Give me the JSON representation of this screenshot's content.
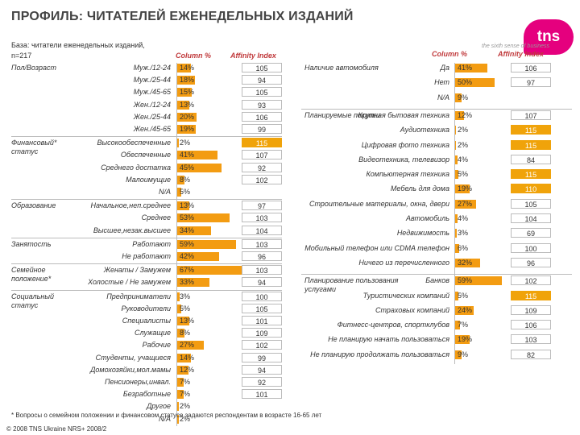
{
  "title": "ПРОФИЛЬ: ЧИТАТЕЛЕЙ ЕЖЕНЕДЕЛЬНЫХ ИЗДАНИЙ",
  "base_line1": "База: читатели еженедельных изданий,",
  "base_line2": "n=217",
  "logo_text": "tns",
  "logo_tagline": "the sixth sense of business",
  "column_label": "Column %",
  "affinity_label": "Affinity Index",
  "footnote": "* Вопросы о семейном положении и финансовом статусе задаются респондентам в возрасте 16-65 лет",
  "copyright": "© 2008 TNS Ukraine NRS+ 2008/2",
  "chart_data": {
    "type": "bar",
    "value_unit": "Column %",
    "index_label": "Affinity Index",
    "left_groups": [
      {
        "group": "Пол/Возраст",
        "rows": [
          {
            "label": "Муж./12-24",
            "value": 14,
            "index": 105
          },
          {
            "label": "Муж./25-44",
            "value": 18,
            "index": 94
          },
          {
            "label": "Муж./45-65",
            "value": 15,
            "index": 105
          },
          {
            "label": "Жен./12-24",
            "value": 13,
            "index": 93
          },
          {
            "label": "Жен./25-44",
            "value": 20,
            "index": 106
          },
          {
            "label": "Жен./45-65",
            "value": 19,
            "index": 99
          }
        ]
      },
      {
        "group": "Финансовый* статус",
        "rows": [
          {
            "label": "Высокообеспеченные",
            "value": 2,
            "index": 115,
            "hi": true
          },
          {
            "label": "Обеспеченные",
            "value": 41,
            "index": 107
          },
          {
            "label": "Среднего достатка",
            "value": 45,
            "index": 92
          },
          {
            "label": "Малоимущие",
            "value": 8,
            "index": 102
          },
          {
            "label": "N/A",
            "value": 5,
            "index": null
          }
        ]
      },
      {
        "group": "Образование",
        "rows": [
          {
            "label": "Начальное,неп.среднее",
            "value": 13,
            "index": 97
          },
          {
            "label": "Среднее",
            "value": 53,
            "index": 103
          },
          {
            "label": "Высшее,незак.высшее",
            "value": 34,
            "index": 104
          }
        ]
      },
      {
        "group": "Занятость",
        "rows": [
          {
            "label": "Работают",
            "value": 59,
            "index": 103
          },
          {
            "label": "Не работают",
            "value": 42,
            "index": 96
          }
        ]
      },
      {
        "group": "Семейное положение*",
        "rows": [
          {
            "label": "Женаты / Замужем",
            "value": 67,
            "index": 103
          },
          {
            "label": "Холостые / Не замужем",
            "value": 33,
            "index": 94
          }
        ]
      },
      {
        "group": "Социальный статус",
        "rows": [
          {
            "label": "Предприниматели",
            "value": 3,
            "index": 100
          },
          {
            "label": "Руководители",
            "value": 5,
            "index": 105
          },
          {
            "label": "Специалисты",
            "value": 13,
            "index": 101
          },
          {
            "label": "Служащие",
            "value": 8,
            "index": 109
          },
          {
            "label": "Рабочие",
            "value": 27,
            "index": 102
          },
          {
            "label": "Студенты, учащиеся",
            "value": 14,
            "index": 99
          },
          {
            "label": "Домохозяйки,мол.мамы",
            "value": 12,
            "index": 94
          },
          {
            "label": "Пенсионеры,инвал.",
            "value": 7,
            "index": 92
          },
          {
            "label": "Безработные",
            "value": 7,
            "index": 101
          },
          {
            "label": "Другое",
            "value": 2,
            "index": null
          },
          {
            "label": "N/A",
            "value": 2,
            "index": null
          }
        ]
      }
    ],
    "right_groups": [
      {
        "group": "Наличие автомобиля",
        "rows": [
          {
            "label": "Да",
            "value": 41,
            "index": 106
          },
          {
            "label": "Нет",
            "value": 50,
            "index": 97
          },
          {
            "label": "N/A",
            "value": 9,
            "index": null
          }
        ]
      },
      {
        "group": "Планируемые покупки",
        "rows": [
          {
            "label": "Крупная бытовая техника",
            "value": 12,
            "index": 107
          },
          {
            "label": "Аудиотехника",
            "value": 2,
            "index": 115,
            "hi": true
          },
          {
            "label": "Цифровая фото техника",
            "value": 2,
            "index": 115,
            "hi": true
          },
          {
            "label": "Видеотехника, телевизор",
            "value": 4,
            "index": 84
          },
          {
            "label": "Компьютерная техника",
            "value": 5,
            "index": 115,
            "hi": true
          },
          {
            "label": "Мебель для дома",
            "value": 19,
            "index": 110,
            "hi": true
          },
          {
            "label": "Строительные материалы, окна, двери",
            "value": 27,
            "index": 105
          },
          {
            "label": "Автомобиль",
            "value": 4,
            "index": 104
          },
          {
            "label": "Недвижимость",
            "value": 3,
            "index": 69
          },
          {
            "label": "Мобильный телефон или CDMA телефон",
            "value": 6,
            "index": 100
          },
          {
            "label": "Ничего из перечисленного",
            "value": 32,
            "index": 96
          }
        ]
      },
      {
        "group": "Планирование пользования услугами",
        "rows": [
          {
            "label": "Банков",
            "value": 59,
            "index": 102
          },
          {
            "label": "Туристических компаний",
            "value": 5,
            "index": 115,
            "hi": true
          },
          {
            "label": "Страховых компаний",
            "value": 24,
            "index": 109
          },
          {
            "label": "Фитнесс-центров, спортклубов",
            "value": 7,
            "index": 106
          },
          {
            "label": "Не планирую начать пользоваться",
            "value": 19,
            "index": 103
          },
          {
            "label": "Не планирую продолжать пользоваться",
            "value": 9,
            "index": 82
          }
        ]
      }
    ],
    "colors": {
      "bar": "#f39c12",
      "highlight_index": "#f0a30a",
      "header": "#c0393b"
    }
  }
}
